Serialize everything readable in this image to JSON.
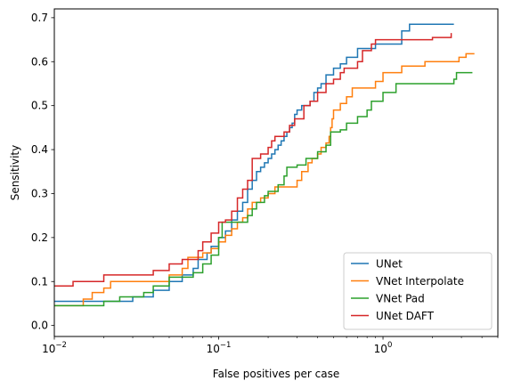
{
  "chart_data": {
    "type": "line",
    "drawstyle": "steps-post",
    "xlabel": "False positives per case",
    "ylabel": "Sensitivity",
    "xscale": "log",
    "xlim": [
      0.01,
      5.0
    ],
    "ylim": [
      -0.025,
      0.72
    ],
    "grid": false,
    "legend_position": "bottom-right",
    "x_ticks": [
      {
        "value": 0.01,
        "base": "10",
        "exp": "−2"
      },
      {
        "value": 0.1,
        "base": "10",
        "exp": "−1"
      },
      {
        "value": 1,
        "base": "10",
        "exp": "0"
      }
    ],
    "y_ticks": [
      0.0,
      0.1,
      0.2,
      0.3,
      0.4,
      0.5,
      0.6,
      0.7
    ],
    "y_tick_labels": [
      "0.0",
      "0.1",
      "0.2",
      "0.3",
      "0.4",
      "0.5",
      "0.6",
      "0.7"
    ],
    "series": [
      {
        "name": "UNet",
        "color": "#1f77b4",
        "points": [
          [
            0.01,
            0.055
          ],
          [
            0.03,
            0.065
          ],
          [
            0.04,
            0.08
          ],
          [
            0.05,
            0.1
          ],
          [
            0.06,
            0.115
          ],
          [
            0.07,
            0.13
          ],
          [
            0.075,
            0.15
          ],
          [
            0.085,
            0.165
          ],
          [
            0.09,
            0.18
          ],
          [
            0.1,
            0.2
          ],
          [
            0.11,
            0.215
          ],
          [
            0.12,
            0.24
          ],
          [
            0.13,
            0.26
          ],
          [
            0.14,
            0.28
          ],
          [
            0.15,
            0.31
          ],
          [
            0.16,
            0.33
          ],
          [
            0.17,
            0.35
          ],
          [
            0.18,
            0.36
          ],
          [
            0.19,
            0.37
          ],
          [
            0.2,
            0.38
          ],
          [
            0.21,
            0.39
          ],
          [
            0.22,
            0.4
          ],
          [
            0.23,
            0.41
          ],
          [
            0.24,
            0.42
          ],
          [
            0.25,
            0.43
          ],
          [
            0.26,
            0.44
          ],
          [
            0.27,
            0.45
          ],
          [
            0.28,
            0.46
          ],
          [
            0.29,
            0.48
          ],
          [
            0.3,
            0.49
          ],
          [
            0.32,
            0.5
          ],
          [
            0.36,
            0.51
          ],
          [
            0.38,
            0.53
          ],
          [
            0.4,
            0.54
          ],
          [
            0.42,
            0.55
          ],
          [
            0.45,
            0.57
          ],
          [
            0.5,
            0.585
          ],
          [
            0.55,
            0.595
          ],
          [
            0.6,
            0.61
          ],
          [
            0.7,
            0.63
          ],
          [
            0.9,
            0.64
          ],
          [
            1.1,
            0.64
          ],
          [
            1.3,
            0.67
          ],
          [
            1.45,
            0.685
          ],
          [
            2.7,
            0.685
          ]
        ]
      },
      {
        "name": "VNet Interpolate",
        "color": "#ff7f0e",
        "points": [
          [
            0.01,
            0.045
          ],
          [
            0.015,
            0.06
          ],
          [
            0.017,
            0.075
          ],
          [
            0.02,
            0.085
          ],
          [
            0.022,
            0.1
          ],
          [
            0.04,
            0.1
          ],
          [
            0.05,
            0.115
          ],
          [
            0.06,
            0.13
          ],
          [
            0.065,
            0.155
          ],
          [
            0.08,
            0.165
          ],
          [
            0.09,
            0.175
          ],
          [
            0.1,
            0.19
          ],
          [
            0.11,
            0.205
          ],
          [
            0.12,
            0.22
          ],
          [
            0.13,
            0.235
          ],
          [
            0.14,
            0.245
          ],
          [
            0.15,
            0.265
          ],
          [
            0.16,
            0.28
          ],
          [
            0.18,
            0.29
          ],
          [
            0.2,
            0.3
          ],
          [
            0.22,
            0.315
          ],
          [
            0.3,
            0.33
          ],
          [
            0.32,
            0.35
          ],
          [
            0.35,
            0.37
          ],
          [
            0.37,
            0.38
          ],
          [
            0.4,
            0.39
          ],
          [
            0.42,
            0.405
          ],
          [
            0.45,
            0.415
          ],
          [
            0.47,
            0.43
          ],
          [
            0.48,
            0.45
          ],
          [
            0.49,
            0.47
          ],
          [
            0.5,
            0.49
          ],
          [
            0.55,
            0.505
          ],
          [
            0.6,
            0.52
          ],
          [
            0.65,
            0.54
          ],
          [
            0.9,
            0.555
          ],
          [
            1.0,
            0.575
          ],
          [
            1.3,
            0.59
          ],
          [
            1.8,
            0.6
          ],
          [
            2.9,
            0.61
          ],
          [
            3.2,
            0.618
          ],
          [
            3.6,
            0.618
          ]
        ]
      },
      {
        "name": "VNet Pad",
        "color": "#2ca02c",
        "points": [
          [
            0.01,
            0.045
          ],
          [
            0.02,
            0.055
          ],
          [
            0.025,
            0.065
          ],
          [
            0.035,
            0.075
          ],
          [
            0.04,
            0.09
          ],
          [
            0.05,
            0.11
          ],
          [
            0.07,
            0.12
          ],
          [
            0.08,
            0.14
          ],
          [
            0.09,
            0.16
          ],
          [
            0.1,
            0.2
          ],
          [
            0.105,
            0.235
          ],
          [
            0.15,
            0.25
          ],
          [
            0.16,
            0.265
          ],
          [
            0.17,
            0.28
          ],
          [
            0.19,
            0.295
          ],
          [
            0.2,
            0.305
          ],
          [
            0.23,
            0.32
          ],
          [
            0.25,
            0.34
          ],
          [
            0.26,
            0.36
          ],
          [
            0.3,
            0.365
          ],
          [
            0.34,
            0.38
          ],
          [
            0.4,
            0.395
          ],
          [
            0.45,
            0.41
          ],
          [
            0.48,
            0.44
          ],
          [
            0.55,
            0.445
          ],
          [
            0.6,
            0.46
          ],
          [
            0.7,
            0.475
          ],
          [
            0.8,
            0.49
          ],
          [
            0.85,
            0.51
          ],
          [
            1.0,
            0.53
          ],
          [
            1.2,
            0.55
          ],
          [
            2.7,
            0.56
          ],
          [
            2.8,
            0.575
          ],
          [
            3.5,
            0.575
          ]
        ]
      },
      {
        "name": "UNet DAFT",
        "color": "#d62728",
        "points": [
          [
            0.01,
            0.09
          ],
          [
            0.013,
            0.1
          ],
          [
            0.02,
            0.115
          ],
          [
            0.04,
            0.125
          ],
          [
            0.05,
            0.14
          ],
          [
            0.06,
            0.15
          ],
          [
            0.075,
            0.17
          ],
          [
            0.08,
            0.19
          ],
          [
            0.09,
            0.21
          ],
          [
            0.1,
            0.235
          ],
          [
            0.11,
            0.24
          ],
          [
            0.12,
            0.26
          ],
          [
            0.13,
            0.29
          ],
          [
            0.14,
            0.31
          ],
          [
            0.15,
            0.33
          ],
          [
            0.16,
            0.38
          ],
          [
            0.18,
            0.39
          ],
          [
            0.2,
            0.405
          ],
          [
            0.21,
            0.42
          ],
          [
            0.22,
            0.43
          ],
          [
            0.25,
            0.44
          ],
          [
            0.27,
            0.455
          ],
          [
            0.29,
            0.47
          ],
          [
            0.33,
            0.5
          ],
          [
            0.36,
            0.51
          ],
          [
            0.4,
            0.53
          ],
          [
            0.45,
            0.55
          ],
          [
            0.5,
            0.56
          ],
          [
            0.55,
            0.575
          ],
          [
            0.58,
            0.585
          ],
          [
            0.7,
            0.6
          ],
          [
            0.75,
            0.625
          ],
          [
            0.85,
            0.64
          ],
          [
            0.9,
            0.65
          ],
          [
            2.0,
            0.655
          ],
          [
            2.6,
            0.665
          ]
        ]
      }
    ]
  }
}
